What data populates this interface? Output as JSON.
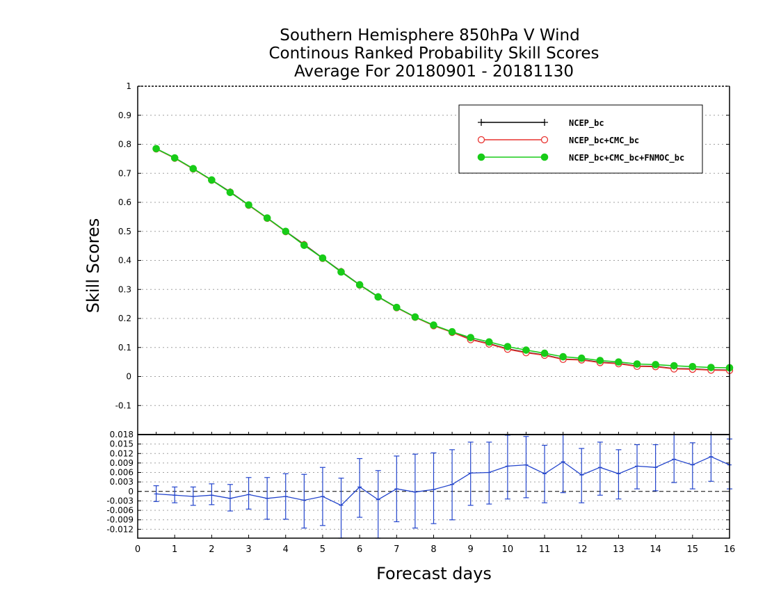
{
  "titles": {
    "line1": "Southern Hemisphere 850hPa V Wind",
    "line2": "Continous Ranked Probability Skill Scores",
    "line3": "Average For 20180901 - 20181130"
  },
  "axes": {
    "ylabel": "Skill Scores",
    "xlabel": "Forecast days"
  },
  "colors": {
    "ncep": "#000000",
    "ncep_cmc": "#e8322f",
    "ncep_cmc_fnmoc": "#18cc18",
    "diff": "#2244cc"
  },
  "chart_data": [
    {
      "type": "line",
      "panel": "main",
      "xlim": [
        0,
        16
      ],
      "ylim": [
        -0.2,
        1
      ],
      "yticks": [
        1,
        0.9,
        0.8,
        0.7,
        0.6,
        0.5,
        0.4,
        0.3,
        0.2,
        0.1,
        0,
        -0.1
      ],
      "ytick_labels": [
        "1",
        "0.9",
        "0.8",
        "0.7",
        "0.6",
        "0.5",
        "0.4",
        "0.3",
        "0.2",
        "0.1",
        "0",
        "-0.1"
      ],
      "grid": true,
      "legend_position": "top-right",
      "x": [
        0.5,
        1,
        1.5,
        2,
        2.5,
        3,
        3.5,
        4,
        4.5,
        5,
        5.5,
        6,
        6.5,
        7,
        7.5,
        8,
        8.5,
        9,
        9.5,
        10,
        10.5,
        11,
        11.5,
        12,
        12.5,
        13,
        13.5,
        14,
        14.5,
        15,
        15.5,
        16
      ],
      "series": [
        {
          "name": "NCEP_bc",
          "marker": "plus",
          "values": [
            0.785,
            0.753,
            0.716,
            0.677,
            0.636,
            0.591,
            0.546,
            0.5,
            0.455,
            0.408,
            0.362,
            0.316,
            0.275,
            0.238,
            0.205,
            0.176,
            0.153,
            0.128,
            0.113,
            0.095,
            0.083,
            0.074,
            0.06,
            0.058,
            0.049,
            0.045,
            0.036,
            0.035,
            0.027,
            0.026,
            0.023,
            0.022
          ]
        },
        {
          "name": "NCEP_bc+CMC_bc",
          "marker": "open-circle",
          "values": [
            0.784,
            0.752,
            0.715,
            0.676,
            0.635,
            0.59,
            0.545,
            0.499,
            0.454,
            0.407,
            0.361,
            0.315,
            0.274,
            0.237,
            0.204,
            0.175,
            0.152,
            0.127,
            0.112,
            0.094,
            0.082,
            0.073,
            0.059,
            0.057,
            0.048,
            0.044,
            0.035,
            0.034,
            0.026,
            0.025,
            0.022,
            0.021
          ]
        },
        {
          "name": "NCEP_bc+CMC_bc+FNMOC_bc",
          "marker": "filled-circle",
          "values": [
            0.785,
            0.753,
            0.716,
            0.677,
            0.634,
            0.591,
            0.546,
            0.5,
            0.452,
            0.408,
            0.36,
            0.316,
            0.274,
            0.238,
            0.205,
            0.177,
            0.154,
            0.134,
            0.119,
            0.103,
            0.091,
            0.08,
            0.068,
            0.063,
            0.055,
            0.05,
            0.043,
            0.041,
            0.037,
            0.034,
            0.031,
            0.03
          ]
        }
      ]
    },
    {
      "type": "line",
      "panel": "difference",
      "xlim": [
        0,
        16
      ],
      "ylim": [
        -0.0148,
        0.018
      ],
      "yticks": [
        0.018,
        0.015,
        0.012,
        0.009,
        0.006,
        0.003,
        0,
        -0.003,
        -0.006,
        -0.009,
        -0.012
      ],
      "ytick_labels": [
        "0.018",
        "0.015",
        "0.012",
        "0.009",
        "0.006",
        "0.003",
        "0",
        "-0.003",
        "-0.006",
        "-0.009",
        "-0.012"
      ],
      "xticks": [
        0,
        1,
        2,
        3,
        4,
        5,
        6,
        7,
        8,
        9,
        10,
        11,
        12,
        13,
        14,
        15,
        16
      ],
      "xtick_labels": [
        "0",
        "1",
        "2",
        "3",
        "4",
        "5",
        "6",
        "7",
        "8",
        "9",
        "10",
        "11",
        "12",
        "13",
        "14",
        "15",
        "16"
      ],
      "grid": true,
      "x": [
        0.5,
        1,
        1.5,
        2,
        2.5,
        3,
        3.5,
        4,
        4.5,
        5,
        5.5,
        6,
        6.5,
        7,
        7.5,
        8,
        8.5,
        9,
        9.5,
        10,
        10.5,
        11,
        11.5,
        12,
        12.5,
        13,
        13.5,
        14,
        14.5,
        15,
        15.5,
        16
      ],
      "values": [
        -0.0008,
        -0.0012,
        -0.0016,
        -0.0012,
        -0.0022,
        -0.001,
        -0.0022,
        -0.0016,
        -0.0028,
        -0.0016,
        -0.0044,
        0.0014,
        -0.0026,
        0.0008,
        -0.0002,
        0.0006,
        0.0022,
        0.0058,
        0.006,
        0.008,
        0.0084,
        0.0056,
        0.0094,
        0.0052,
        0.0076,
        0.0056,
        0.008,
        0.0076,
        0.0102,
        0.0084,
        0.011,
        0.0084
      ],
      "error_low": [
        -0.0032,
        -0.0036,
        -0.0044,
        -0.0042,
        -0.0062,
        -0.0056,
        -0.0088,
        -0.0088,
        -0.0116,
        -0.0108,
        -0.0148,
        -0.0082,
        -0.0148,
        -0.0096,
        -0.0116,
        -0.0102,
        -0.009,
        -0.0044,
        -0.004,
        -0.0024,
        -0.002,
        -0.0036,
        -0.0004,
        -0.0036,
        -0.0012,
        -0.0024,
        0.0008,
        0.0002,
        0.0028,
        0.0008,
        0.0032,
        0.0008
      ],
      "error_high": [
        0.0018,
        0.0014,
        0.0014,
        0.0024,
        0.0022,
        0.0044,
        0.0044,
        0.0056,
        0.0054,
        0.0076,
        0.0042,
        0.0104,
        0.0066,
        0.0112,
        0.0118,
        0.0122,
        0.0132,
        0.0156,
        0.0156,
        0.0178,
        0.0174,
        0.0146,
        0.018,
        0.0136,
        0.0156,
        0.0132,
        0.0148,
        0.0148,
        0.018,
        0.0154,
        0.018,
        0.0166
      ],
      "reference_line": 0
    }
  ]
}
